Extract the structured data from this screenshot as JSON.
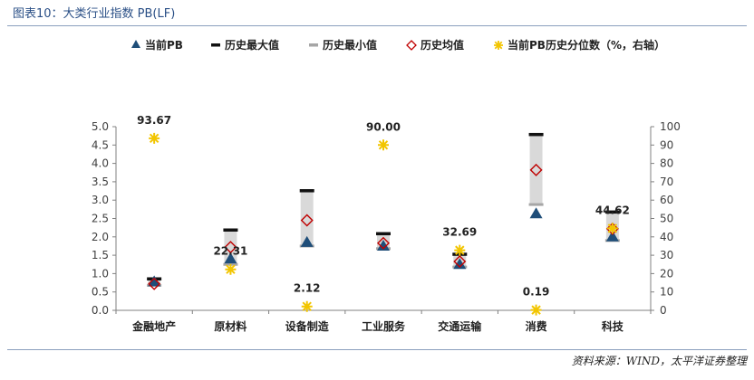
{
  "caption": "图表10：大类行业指数 PB(LF)",
  "source": "资料来源：WIND，太平洋证券整理",
  "chart_data": {
    "type": "range",
    "categories": [
      "金融地产",
      "原材料",
      "设备制造",
      "工业服务",
      "交通运输",
      "消费",
      "科技"
    ],
    "series": [
      {
        "name": "当前PB",
        "axis": "left",
        "marker": "triangle",
        "color": "#1f4e79",
        "values": [
          0.78,
          1.4,
          1.85,
          1.75,
          1.25,
          2.63,
          2.0
        ]
      },
      {
        "name": "历史最大值",
        "axis": "left",
        "marker": "dash",
        "color": "#111111",
        "values": [
          0.85,
          2.18,
          3.25,
          2.08,
          1.52,
          4.78,
          2.67
        ]
      },
      {
        "name": "历史最小值",
        "axis": "left",
        "marker": "dash",
        "color": "#a6a6a6",
        "values": [
          0.68,
          1.25,
          1.75,
          1.68,
          1.18,
          2.88,
          1.9
        ]
      },
      {
        "name": "历史均值",
        "axis": "left",
        "marker": "diamond",
        "color": "#c00000",
        "values": [
          0.72,
          1.72,
          2.45,
          1.83,
          1.33,
          3.82,
          2.22
        ]
      },
      {
        "name": "当前PB历史分位数（%，右轴）",
        "axis": "right",
        "marker": "star",
        "color": "#f2c500",
        "values": [
          93.67,
          22.31,
          2.12,
          90.0,
          32.69,
          0.19,
          44.62
        ],
        "labels": [
          "93.67",
          "22.31",
          "2.12",
          "90.00",
          "32.69",
          "0.19",
          "44.62"
        ]
      }
    ],
    "y_left": {
      "min": 0,
      "max": 5,
      "step": 0.5,
      "ticks": [
        "0.0",
        "0.5",
        "1.0",
        "1.5",
        "2.0",
        "2.5",
        "3.0",
        "3.5",
        "4.0",
        "4.5",
        "5.0"
      ]
    },
    "y_right": {
      "min": 0,
      "max": 100,
      "step": 10,
      "ticks": [
        "0",
        "10",
        "20",
        "30",
        "40",
        "50",
        "60",
        "70",
        "80",
        "90",
        "100"
      ]
    },
    "grid": false,
    "legend_position": "top"
  }
}
